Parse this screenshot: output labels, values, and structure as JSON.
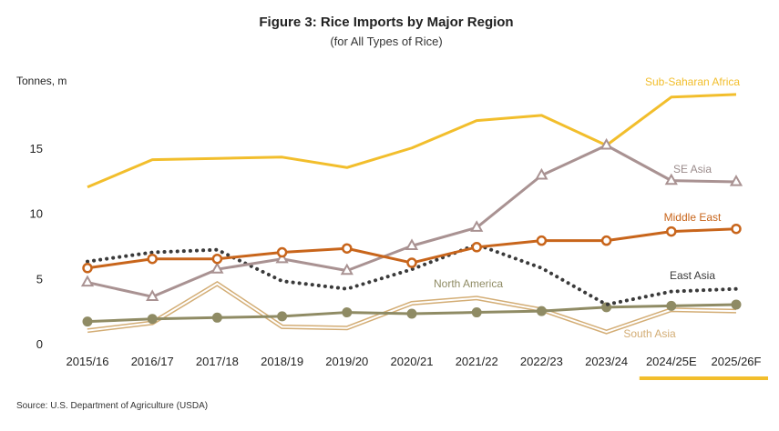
{
  "chart_data": {
    "type": "line",
    "title": "Figure 3: Rice Imports by Major Region",
    "subtitle": "(for All Types of Rice)",
    "ylabel": "Tonnes, m",
    "ylim": [
      0,
      20
    ],
    "yticks": [
      0,
      5,
      10,
      15
    ],
    "grid": false,
    "categories": [
      "2015/16",
      "2016/17",
      "2017/18",
      "2018/19",
      "2019/20",
      "2020/21",
      "2021/22",
      "2022/23",
      "2023/24",
      "2024/25E",
      "2025/26F"
    ],
    "source": "Source: U.S. Department of Agriculture (USDA)",
    "series": [
      {
        "name": "Sub-Saharan Africa",
        "style": "solid",
        "color": "#f2be2c",
        "marker": "none",
        "values": [
          12.0,
          14.1,
          14.2,
          14.3,
          13.5,
          15.0,
          17.1,
          17.5,
          15.2,
          18.9,
          19.1
        ]
      },
      {
        "name": "SE Asia",
        "style": "solid",
        "color": "#a99292",
        "marker": "triangle",
        "values": [
          4.7,
          3.6,
          5.7,
          6.5,
          5.6,
          7.5,
          8.9,
          12.9,
          15.2,
          12.5,
          12.4
        ]
      },
      {
        "name": "Middle East",
        "style": "solid",
        "color": "#c8651b",
        "marker": "circle",
        "values": [
          5.8,
          6.5,
          6.5,
          7.0,
          7.3,
          6.2,
          7.4,
          7.9,
          7.9,
          8.6,
          8.8
        ]
      },
      {
        "name": "East Asia",
        "style": "dotted",
        "color": "#3a3a3a",
        "marker": "none",
        "values": [
          6.3,
          7.0,
          7.2,
          4.8,
          4.2,
          5.7,
          7.6,
          5.8,
          3.0,
          4.0,
          4.2
        ]
      },
      {
        "name": "North America",
        "style": "solid",
        "color": "#8f8b64",
        "marker": "dot",
        "values": [
          1.7,
          1.9,
          2.0,
          2.1,
          2.4,
          2.3,
          2.4,
          2.5,
          2.8,
          2.9,
          3.0
        ]
      },
      {
        "name": "South Asia",
        "style": "double",
        "color": "#d3ad75",
        "marker": "none",
        "values": [
          1.0,
          1.6,
          4.6,
          1.3,
          1.2,
          3.1,
          3.5,
          2.6,
          0.9,
          2.6,
          2.5
        ]
      }
    ],
    "highlight_categories": [
      "2024/25E",
      "2025/26F"
    ]
  }
}
